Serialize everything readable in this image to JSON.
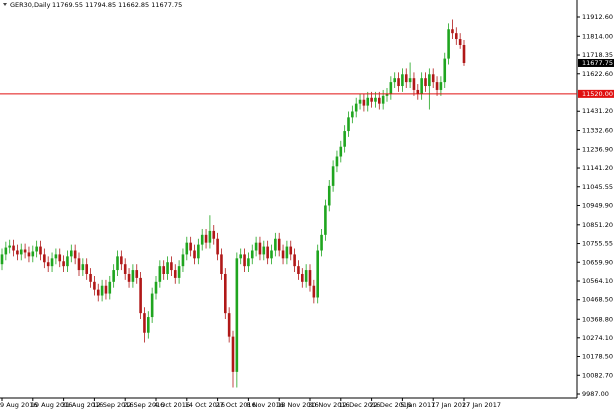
{
  "chart_data": {
    "type": "candlestick",
    "title": "GER30,Daily",
    "ohlc_text": "11769.55 11794.85 11662.85 11677.75",
    "up_color": "#1fa51f",
    "down_color": "#b01818",
    "grid": false,
    "categories": [
      "9 Aug 2016",
      null,
      null,
      null,
      null,
      null,
      null,
      null,
      "19 Aug 2016",
      null,
      null,
      null,
      null,
      null,
      null,
      null,
      "31 Aug 2016",
      null,
      null,
      null,
      null,
      null,
      null,
      null,
      "12 Sep 2016",
      null,
      null,
      null,
      null,
      null,
      null,
      null,
      "22 Sep 2016",
      null,
      null,
      null,
      null,
      null,
      null,
      null,
      "4 Oct 2016",
      null,
      null,
      null,
      null,
      null,
      null,
      null,
      "14 Oct 2016",
      null,
      null,
      null,
      null,
      null,
      null,
      null,
      "27 Oct 2016",
      null,
      null,
      null,
      null,
      null,
      null,
      null,
      "8 Nov 2016",
      null,
      null,
      null,
      null,
      null,
      null,
      null,
      "18 Nov 2016",
      null,
      null,
      null,
      null,
      null,
      null,
      null,
      "30 Nov 2016",
      null,
      null,
      null,
      null,
      null,
      null,
      null,
      "12 Dec 2016",
      null,
      null,
      null,
      null,
      null,
      null,
      null,
      "22 Dec 2016",
      null,
      null,
      null,
      null,
      null,
      null,
      null,
      "5 Jan 2017",
      null,
      null,
      null,
      null,
      null,
      null,
      null,
      "17 Jan 2017",
      null,
      null,
      null,
      null,
      null,
      null,
      null,
      "27 Jan 2017"
    ],
    "open": [
      10650,
      10700,
      10735,
      10745,
      10720,
      10700,
      10725,
      10710,
      10690,
      10715,
      10740,
      10700,
      10660,
      10640,
      10680,
      10700,
      10665,
      10640,
      10690,
      10720,
      10680,
      10620,
      10650,
      10600,
      10560,
      10520,
      10490,
      10540,
      10500,
      10560,
      10620,
      10690,
      10650,
      10600,
      10560,
      10620,
      10580,
      10400,
      10300,
      10380,
      10500,
      10560,
      10640,
      10600,
      10660,
      10620,
      10580,
      10640,
      10700,
      10760,
      10720,
      10680,
      10750,
      10800,
      10760,
      10820,
      10780,
      10700,
      10600,
      10400,
      10280,
      10100,
      10680,
      10700,
      10640,
      10680,
      10720,
      10760,
      10700,
      10740,
      10680,
      10720,
      10780,
      10720,
      10680,
      10740,
      10700,
      10640,
      10600,
      10560,
      10620,
      10540,
      10480,
      10720,
      10800,
      10950,
      11050,
      11150,
      11200,
      11250,
      11330,
      11400,
      11430,
      11470,
      11490,
      11460,
      11500,
      11480,
      11500,
      11470,
      11510,
      11520,
      11580,
      11600,
      11560,
      11620,
      11580,
      11600,
      11540,
      11520,
      11600,
      11560,
      11620,
      11580,
      11540,
      11580,
      11700,
      11850,
      11830,
      11800,
      11769.55
    ],
    "high": [
      10730,
      10765,
      10775,
      10775,
      10750,
      10755,
      10755,
      10740,
      10745,
      10770,
      10770,
      10730,
      10690,
      10710,
      10730,
      10730,
      10695,
      10720,
      10750,
      10750,
      10710,
      10680,
      10680,
      10630,
      10590,
      10550,
      10570,
      10570,
      10590,
      10650,
      10720,
      10720,
      10680,
      10630,
      10650,
      10650,
      10610,
      10430,
      10410,
      10530,
      10590,
      10670,
      10670,
      10690,
      10690,
      10650,
      10670,
      10730,
      10790,
      10790,
      10750,
      10780,
      10830,
      10830,
      10900,
      10850,
      10810,
      10730,
      10630,
      10430,
      10310,
      10710,
      10730,
      10730,
      10710,
      10750,
      10790,
      10790,
      10770,
      10770,
      10750,
      10810,
      10810,
      10750,
      10770,
      10770,
      10730,
      10670,
      10630,
      10650,
      10650,
      10570,
      10750,
      10830,
      10980,
      11080,
      11180,
      11230,
      11280,
      11360,
      11430,
      11460,
      11500,
      11520,
      11520,
      11530,
      11530,
      11530,
      11530,
      11540,
      11550,
      11610,
      11630,
      11630,
      11650,
      11650,
      11680,
      11630,
      11570,
      11630,
      11630,
      11650,
      11650,
      11610,
      11610,
      11730,
      11880,
      11900,
      11860,
      11830,
      11794.85
    ],
    "low": [
      10620,
      10670,
      10705,
      10690,
      10670,
      10670,
      10680,
      10660,
      10660,
      10685,
      10670,
      10630,
      10610,
      10610,
      10650,
      10635,
      10610,
      10610,
      10660,
      10650,
      10590,
      10590,
      10570,
      10530,
      10490,
      10460,
      10460,
      10470,
      10470,
      10530,
      10590,
      10620,
      10570,
      10530,
      10530,
      10550,
      10370,
      10250,
      10270,
      10350,
      10470,
      10530,
      10570,
      10570,
      10590,
      10550,
      10550,
      10610,
      10670,
      10690,
      10650,
      10650,
      10720,
      10730,
      10730,
      10750,
      10670,
      10570,
      10370,
      10250,
      10020,
      10020,
      10650,
      10610,
      10610,
      10650,
      10690,
      10670,
      10670,
      10650,
      10650,
      10690,
      10690,
      10650,
      10650,
      10670,
      10610,
      10570,
      10530,
      10530,
      10510,
      10450,
      10450,
      10690,
      10770,
      10920,
      11020,
      11120,
      11170,
      11220,
      11300,
      11370,
      11400,
      11440,
      11430,
      11430,
      11450,
      11450,
      11440,
      11440,
      11480,
      11490,
      11550,
      11530,
      11530,
      11550,
      11550,
      11510,
      11490,
      11490,
      11530,
      11440,
      11550,
      11510,
      11510,
      11550,
      11670,
      11800,
      11770,
      11750,
      11662.85
    ],
    "close": [
      10700,
      10735,
      10745,
      10720,
      10700,
      10725,
      10710,
      10690,
      10715,
      10740,
      10700,
      10660,
      10640,
      10680,
      10700,
      10665,
      10640,
      10690,
      10720,
      10680,
      10620,
      10650,
      10600,
      10560,
      10520,
      10490,
      10540,
      10500,
      10560,
      10620,
      10690,
      10650,
      10600,
      10560,
      10620,
      10580,
      10400,
      10300,
      10380,
      10500,
      10560,
      10640,
      10600,
      10660,
      10620,
      10580,
      10640,
      10700,
      10760,
      10720,
      10680,
      10750,
      10800,
      10760,
      10820,
      10780,
      10700,
      10600,
      10400,
      10280,
      10100,
      10680,
      10700,
      10640,
      10680,
      10720,
      10760,
      10700,
      10740,
      10680,
      10720,
      10780,
      10720,
      10680,
      10740,
      10700,
      10640,
      10600,
      10560,
      10620,
      10540,
      10480,
      10720,
      10800,
      10950,
      11050,
      11150,
      11200,
      11250,
      11330,
      11400,
      11430,
      11470,
      11490,
      11460,
      11500,
      11480,
      11500,
      11470,
      11510,
      11520,
      11580,
      11600,
      11560,
      11620,
      11580,
      11600,
      11540,
      11520,
      11600,
      11560,
      11620,
      11580,
      11540,
      11580,
      11700,
      11850,
      11830,
      11800,
      11769.55,
      11677.75
    ],
    "ylim": [
      9966.6,
      11999.4
    ],
    "yticks": [
      {
        "value": 11912.6,
        "label": "11912.60"
      },
      {
        "value": 11814,
        "label": "11814.00"
      },
      {
        "value": 11718.35,
        "label": "11718.35"
      },
      {
        "value": 11622.6,
        "label": "11622.60"
      },
      {
        "value": 11431.2,
        "label": "11431.20"
      },
      {
        "value": 11332.6,
        "label": "11332.60"
      },
      {
        "value": 11236.9,
        "label": "11236.90"
      },
      {
        "value": 11141.2,
        "label": "11141.20"
      },
      {
        "value": 11045.55,
        "label": "11045.55"
      },
      {
        "value": 10949.9,
        "label": "10949.90"
      },
      {
        "value": 10851.2,
        "label": "10851.20"
      },
      {
        "value": 10755.55,
        "label": "10755.55"
      },
      {
        "value": 10659.9,
        "label": "10659.90"
      },
      {
        "value": 10564.1,
        "label": "10564.10"
      },
      {
        "value": 10468.5,
        "label": "10468.50"
      },
      {
        "value": 10368.8,
        "label": "10368.80"
      },
      {
        "value": 10274.1,
        "label": "10274.10"
      },
      {
        "value": 10178.5,
        "label": "10178.50"
      },
      {
        "value": 10082.7,
        "label": "10082.70"
      },
      {
        "value": 9987,
        "label": "9987.00"
      }
    ],
    "hline": {
      "value": 11520,
      "label": "11520.00",
      "color": "#e01010"
    },
    "price_marker_label": "11677.75"
  }
}
